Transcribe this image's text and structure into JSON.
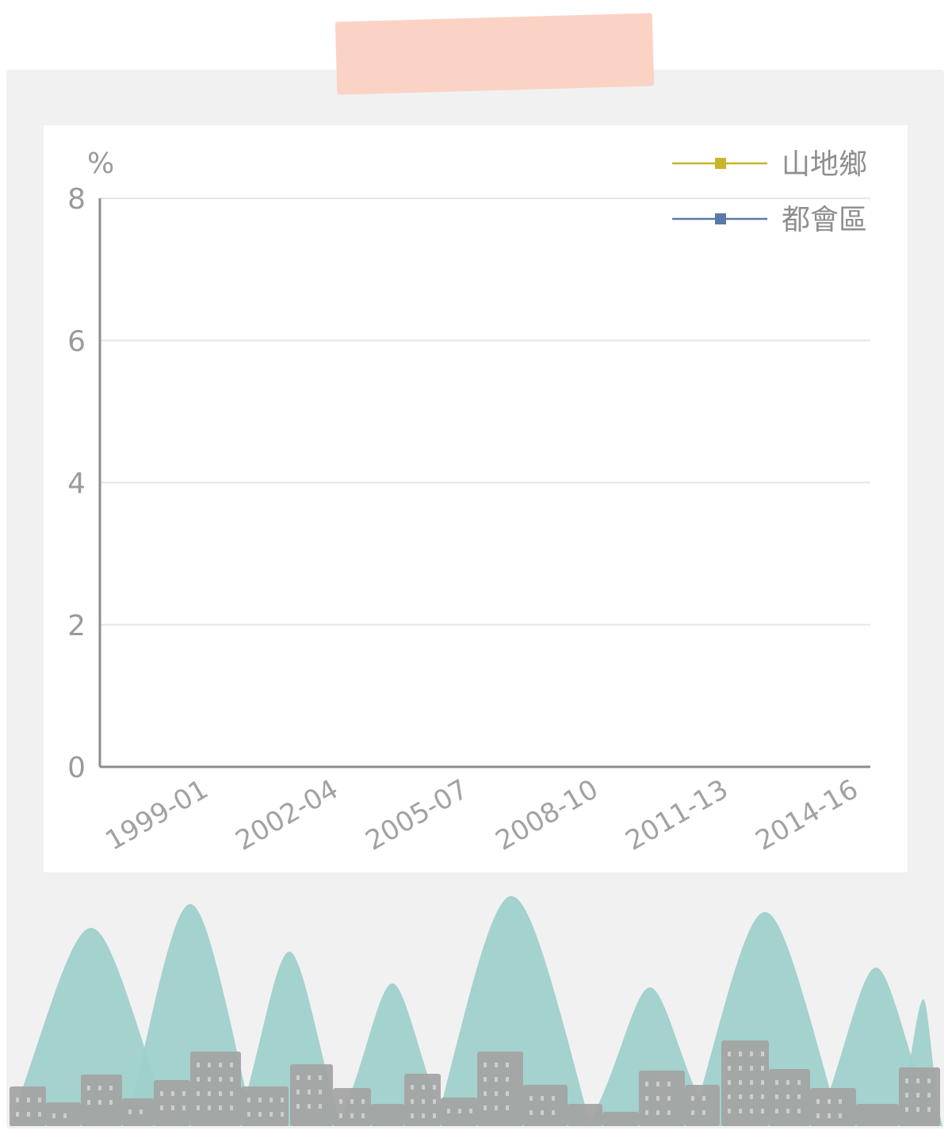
{
  "chart_data": {
    "type": "line",
    "ylabel": "%",
    "ylim": [
      0,
      8
    ],
    "yticks": [
      "0",
      "2",
      "4",
      "6",
      "8"
    ],
    "categories": [
      "1999-01",
      "2002-04",
      "2005-07",
      "2008-10",
      "2011-13",
      "2014-16"
    ],
    "series": [
      {
        "name": "山地鄉",
        "color": "#c9b52a",
        "values": [
          null,
          null,
          null,
          null,
          null,
          null
        ]
      },
      {
        "name": "都會區",
        "color": "#5a7aa6",
        "values": [
          null,
          null,
          null,
          null,
          null,
          null
        ]
      }
    ],
    "grid": true,
    "legend": "top-right"
  },
  "decor": {
    "tape_color": "#fbd3c5",
    "frame_color": "#f1f1f1",
    "hill_color": "#9fd0cb",
    "building_color": "#a3a3a3"
  }
}
